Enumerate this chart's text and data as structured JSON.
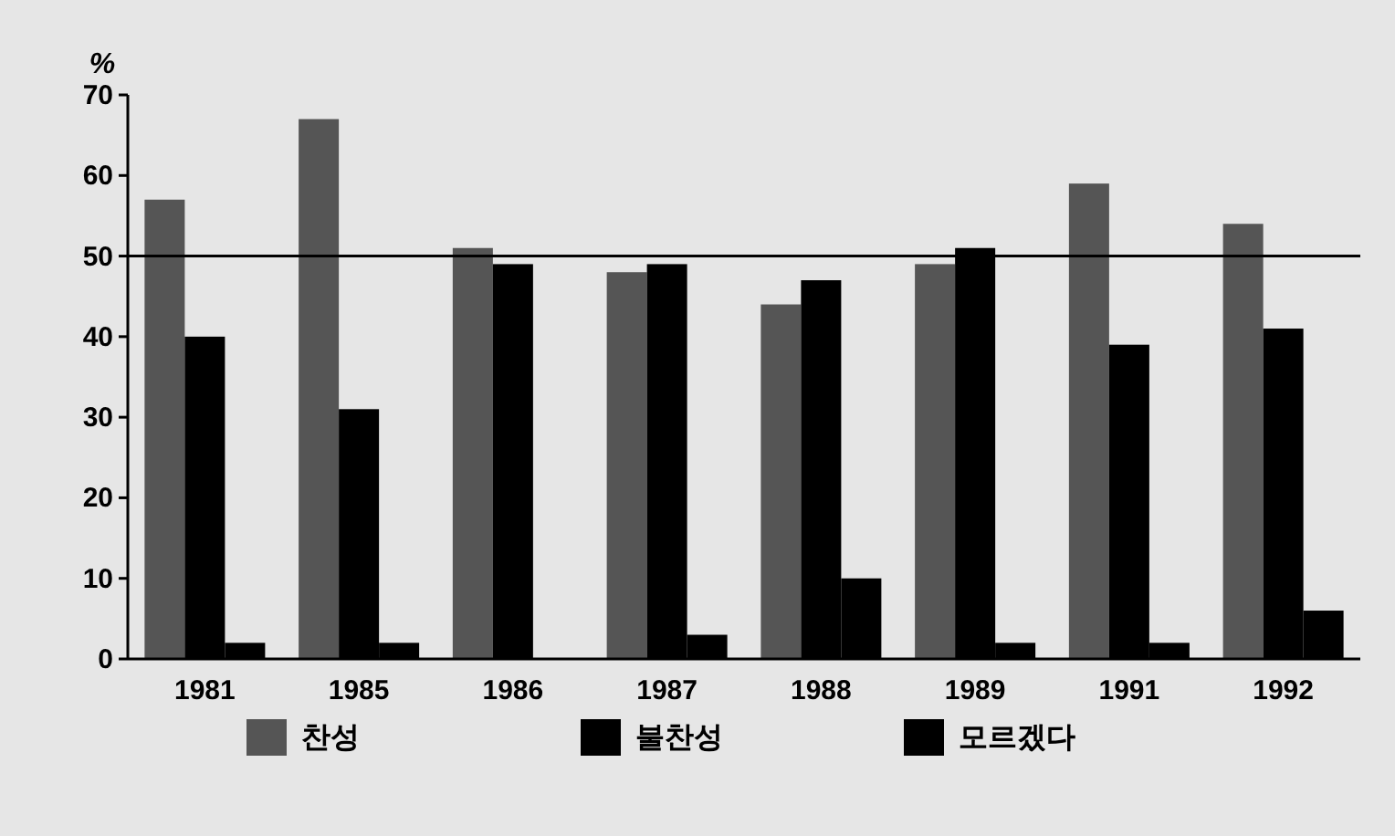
{
  "chart_data": {
    "type": "bar",
    "ylabel": "%",
    "categories": [
      "1981",
      "1985",
      "1986",
      "1987",
      "1988",
      "1989",
      "1991",
      "1992"
    ],
    "series": [
      {
        "name": "찬성",
        "color": "#555555",
        "values": [
          57,
          67,
          51,
          48,
          44,
          49,
          59,
          54
        ]
      },
      {
        "name": "불찬성",
        "color": "#000000",
        "values": [
          40,
          31,
          49,
          49,
          47,
          51,
          39,
          41
        ]
      },
      {
        "name": "모르겠다",
        "color": "#000000",
        "values": [
          2,
          2,
          0,
          3,
          10,
          2,
          2,
          6
        ]
      }
    ],
    "ylim": [
      0,
      70
    ],
    "yticks": [
      0,
      10,
      20,
      30,
      40,
      50,
      60,
      70
    ],
    "ref_lines": [
      {
        "axis": "y",
        "value": 50,
        "color": "#000000"
      }
    ],
    "grid": false,
    "legend": "bottom"
  }
}
